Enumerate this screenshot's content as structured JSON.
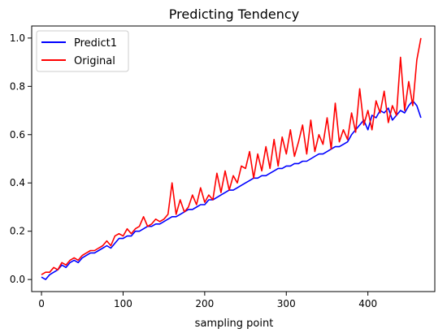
{
  "chart_data": {
    "type": "line",
    "title": "Predicting Tendency",
    "xlabel": "sampling point",
    "ylabel": "",
    "xlim": [
      -12,
      482
    ],
    "ylim": [
      -0.05,
      1.05
    ],
    "xticks": [
      0,
      100,
      200,
      300,
      400
    ],
    "yticks": [
      0.0,
      0.2,
      0.4,
      0.6,
      0.8,
      1.0
    ],
    "xtick_labels": [
      "0",
      "100",
      "200",
      "300",
      "400"
    ],
    "ytick_labels": [
      "0.0",
      "0.2",
      "0.4",
      "0.6",
      "0.8",
      "1.0"
    ],
    "grid": false,
    "legend_position": "top-left",
    "series": [
      {
        "name": "Predict1",
        "color": "#0000ff",
        "x": [
          0,
          5,
          10,
          15,
          20,
          25,
          30,
          35,
          40,
          45,
          50,
          55,
          60,
          65,
          70,
          75,
          80,
          85,
          90,
          95,
          100,
          105,
          110,
          115,
          120,
          125,
          130,
          135,
          140,
          145,
          150,
          155,
          160,
          165,
          170,
          175,
          180,
          185,
          190,
          195,
          200,
          205,
          210,
          215,
          220,
          225,
          230,
          235,
          240,
          245,
          250,
          255,
          260,
          265,
          270,
          275,
          280,
          285,
          290,
          295,
          300,
          305,
          310,
          315,
          320,
          325,
          330,
          335,
          340,
          345,
          350,
          355,
          360,
          365,
          370,
          375,
          380,
          385,
          390,
          395,
          400,
          405,
          410,
          415,
          420,
          425,
          430,
          435,
          440,
          445,
          450,
          455,
          460,
          465
        ],
        "values": [
          0.01,
          0.0,
          0.02,
          0.03,
          0.04,
          0.06,
          0.05,
          0.07,
          0.08,
          0.07,
          0.09,
          0.1,
          0.11,
          0.11,
          0.12,
          0.13,
          0.14,
          0.13,
          0.15,
          0.17,
          0.17,
          0.18,
          0.18,
          0.2,
          0.2,
          0.21,
          0.22,
          0.22,
          0.23,
          0.23,
          0.24,
          0.25,
          0.26,
          0.26,
          0.27,
          0.28,
          0.29,
          0.29,
          0.3,
          0.31,
          0.31,
          0.33,
          0.33,
          0.34,
          0.35,
          0.36,
          0.37,
          0.37,
          0.38,
          0.39,
          0.4,
          0.41,
          0.42,
          0.42,
          0.43,
          0.43,
          0.44,
          0.45,
          0.46,
          0.46,
          0.47,
          0.47,
          0.48,
          0.48,
          0.49,
          0.49,
          0.5,
          0.51,
          0.52,
          0.52,
          0.53,
          0.54,
          0.55,
          0.55,
          0.56,
          0.57,
          0.6,
          0.62,
          0.64,
          0.66,
          0.62,
          0.68,
          0.67,
          0.7,
          0.69,
          0.71,
          0.66,
          0.68,
          0.7,
          0.69,
          0.72,
          0.74,
          0.72,
          0.67
        ]
      },
      {
        "name": "Original",
        "color": "#ff0000",
        "x": [
          0,
          5,
          10,
          15,
          20,
          25,
          30,
          35,
          40,
          45,
          50,
          55,
          60,
          65,
          70,
          75,
          80,
          85,
          90,
          95,
          100,
          105,
          110,
          115,
          120,
          125,
          130,
          135,
          140,
          145,
          150,
          155,
          160,
          165,
          170,
          175,
          180,
          185,
          190,
          195,
          200,
          205,
          210,
          215,
          220,
          225,
          230,
          235,
          240,
          245,
          250,
          255,
          260,
          265,
          270,
          275,
          280,
          285,
          290,
          295,
          300,
          305,
          310,
          315,
          320,
          325,
          330,
          335,
          340,
          345,
          350,
          355,
          360,
          365,
          370,
          375,
          380,
          385,
          390,
          395,
          400,
          405,
          410,
          415,
          420,
          425,
          430,
          435,
          440,
          445,
          450,
          455,
          460,
          465
        ],
        "values": [
          0.02,
          0.03,
          0.03,
          0.05,
          0.04,
          0.07,
          0.06,
          0.08,
          0.09,
          0.08,
          0.1,
          0.11,
          0.12,
          0.12,
          0.13,
          0.14,
          0.16,
          0.14,
          0.18,
          0.19,
          0.18,
          0.21,
          0.19,
          0.21,
          0.22,
          0.26,
          0.22,
          0.23,
          0.25,
          0.24,
          0.25,
          0.27,
          0.4,
          0.27,
          0.33,
          0.28,
          0.3,
          0.35,
          0.31,
          0.38,
          0.32,
          0.35,
          0.33,
          0.44,
          0.36,
          0.45,
          0.37,
          0.43,
          0.4,
          0.47,
          0.46,
          0.53,
          0.42,
          0.52,
          0.45,
          0.55,
          0.46,
          0.58,
          0.47,
          0.59,
          0.52,
          0.62,
          0.51,
          0.57,
          0.64,
          0.52,
          0.66,
          0.53,
          0.6,
          0.56,
          0.67,
          0.54,
          0.73,
          0.57,
          0.62,
          0.58,
          0.69,
          0.61,
          0.79,
          0.64,
          0.7,
          0.62,
          0.74,
          0.69,
          0.78,
          0.65,
          0.72,
          0.68,
          0.92,
          0.7,
          0.82,
          0.72,
          0.91,
          1.0
        ]
      }
    ]
  }
}
